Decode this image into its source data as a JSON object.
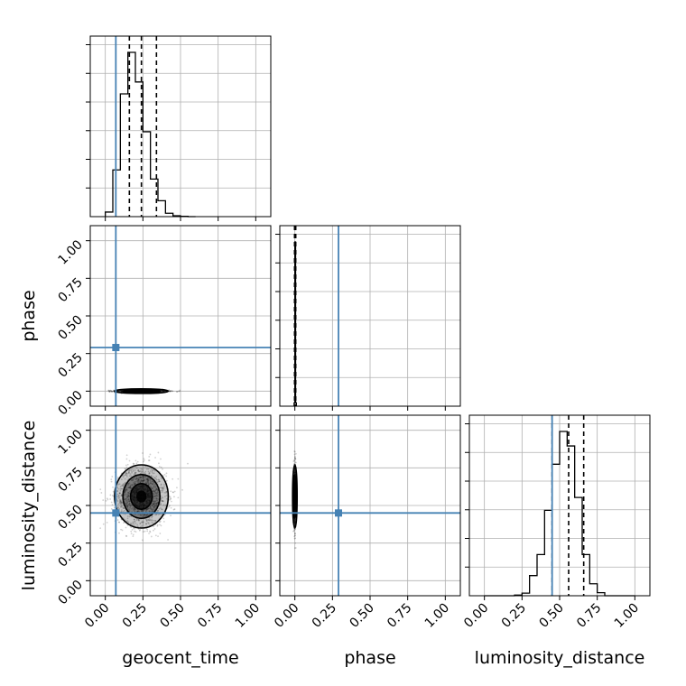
{
  "chart_data": {
    "type": "corner",
    "parameters": [
      "geocent_time",
      "phase",
      "luminosity_distance"
    ],
    "axis_labels": {
      "geocent_time": "geocent_time",
      "phase": "phase",
      "luminosity_distance": "luminosity_distance"
    },
    "range": [
      -0.1,
      1.1
    ],
    "ticks": [
      0.0,
      0.25,
      0.5,
      0.75,
      1.0
    ],
    "tick_labels": [
      "0.00",
      "0.25",
      "0.50",
      "0.75",
      "1.00"
    ],
    "grid": true,
    "colors": {
      "truth": "#4682b4",
      "hist": "#000000",
      "quantile": "#000000"
    },
    "truths": {
      "geocent_time": 0.07,
      "phase": 0.29,
      "luminosity_distance": 0.45
    },
    "histograms": {
      "geocent_time": {
        "bin_edges": [
          0.0,
          0.05,
          0.1,
          0.15,
          0.2,
          0.25,
          0.3,
          0.35,
          0.4,
          0.45,
          0.5,
          0.55,
          0.6
        ],
        "counts": [
          1.5,
          15.3,
          40.2,
          53.8,
          44.1,
          27.8,
          12.3,
          5.2,
          1.1,
          0.3,
          0.1,
          0.0
        ],
        "quantiles": [
          0.16,
          0.24,
          0.34
        ]
      },
      "phase": {
        "bin_edges": [
          -0.005,
          0.0,
          0.005,
          0.01
        ],
        "counts": [
          2.0,
          98.0,
          2.0
        ],
        "quantiles": [
          -0.002,
          0.002,
          0.006
        ]
      },
      "luminosity_distance": {
        "bin_edges": [
          0.0,
          0.05,
          0.1,
          0.15,
          0.2,
          0.25,
          0.3,
          0.35,
          0.4,
          0.45,
          0.5,
          0.55,
          0.6,
          0.65,
          0.7,
          0.75,
          0.8,
          0.85,
          0.9,
          0.95,
          1.0
        ],
        "counts": [
          0,
          0,
          0,
          0,
          0.3,
          1.1,
          8.6,
          17.6,
          36.5,
          56.2,
          70.2,
          64.0,
          42.0,
          17.6,
          5.1,
          1.3,
          0,
          0,
          0,
          0
        ],
        "quantiles": [
          0.45,
          0.56,
          0.66
        ]
      }
    },
    "scatter_2d": {
      "geocent_time__phase": {
        "x_mean": 0.24,
        "x_sd": 0.085,
        "y_mean": 0.0,
        "y_sd": 0.004,
        "n": 900
      },
      "geocent_time__luminosity_distance": {
        "x_mean": 0.24,
        "x_sd": 0.085,
        "y_mean": 0.56,
        "y_sd": 0.1,
        "n": 1500
      },
      "phase__luminosity_distance": {
        "x_mean": 0.0,
        "x_sd": 0.004,
        "y_mean": 0.56,
        "y_sd": 0.1,
        "n": 900
      }
    }
  }
}
